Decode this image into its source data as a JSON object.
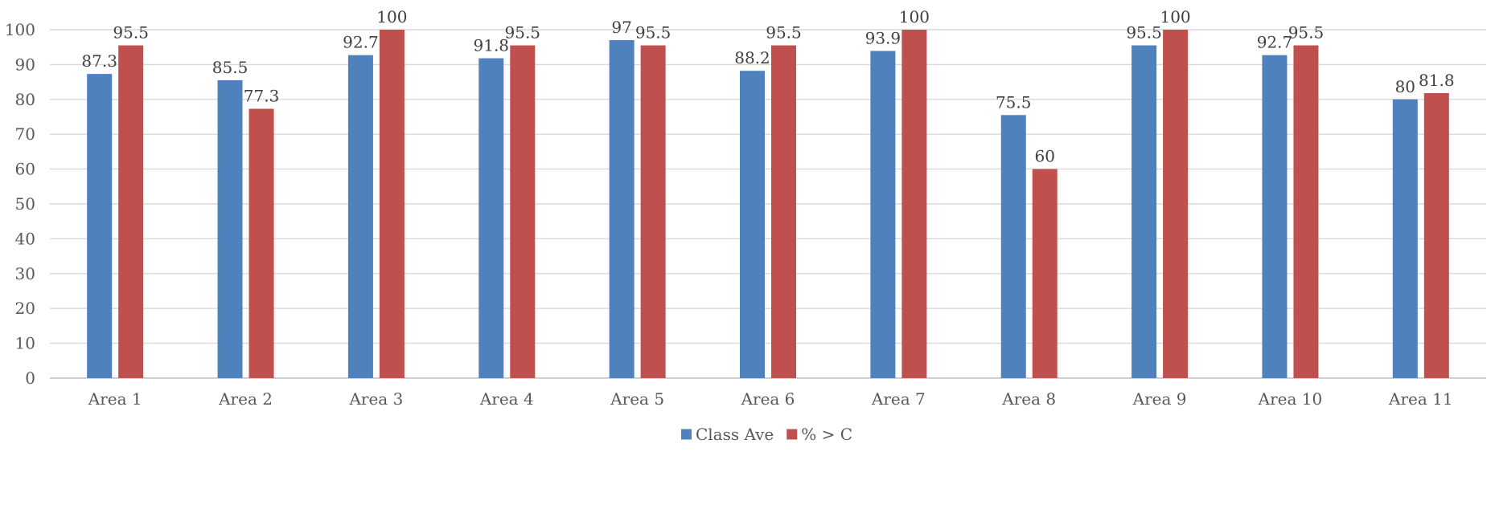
{
  "chart_data": {
    "type": "bar",
    "title": "",
    "xlabel": "",
    "ylabel": "",
    "ylim": [
      0,
      100
    ],
    "yticks": [
      0,
      10,
      20,
      30,
      40,
      50,
      60,
      70,
      80,
      90,
      100
    ],
    "grid": true,
    "legend_position": "bottom",
    "categories": [
      "Area 1",
      "Area 2",
      "Area 3",
      "Area 4",
      "Area 5",
      "Area 6",
      "Area 7",
      "Area 8",
      "Area 9",
      "Area 10",
      "Area 11"
    ],
    "series": [
      {
        "name": "Class Ave",
        "color": "#4f81bd",
        "values": [
          87.3,
          85.5,
          92.7,
          91.8,
          97,
          88.2,
          93.9,
          75.5,
          95.5,
          92.7,
          80
        ],
        "labels": [
          "87.3",
          "85.5",
          "92.7",
          "91.8",
          "97",
          "88.2",
          "93.9",
          "75.5",
          "95.5",
          "92.7",
          "80"
        ]
      },
      {
        "name": "% > C",
        "color": "#c0504d",
        "values": [
          95.5,
          77.3,
          100,
          95.5,
          95.5,
          95.5,
          100,
          60,
          100,
          95.5,
          81.8
        ],
        "labels": [
          "95.5",
          "77.3",
          "100",
          "95.5",
          "95.5",
          "95.5",
          "100",
          "60",
          "100",
          "95.5",
          "81.8"
        ]
      }
    ]
  }
}
